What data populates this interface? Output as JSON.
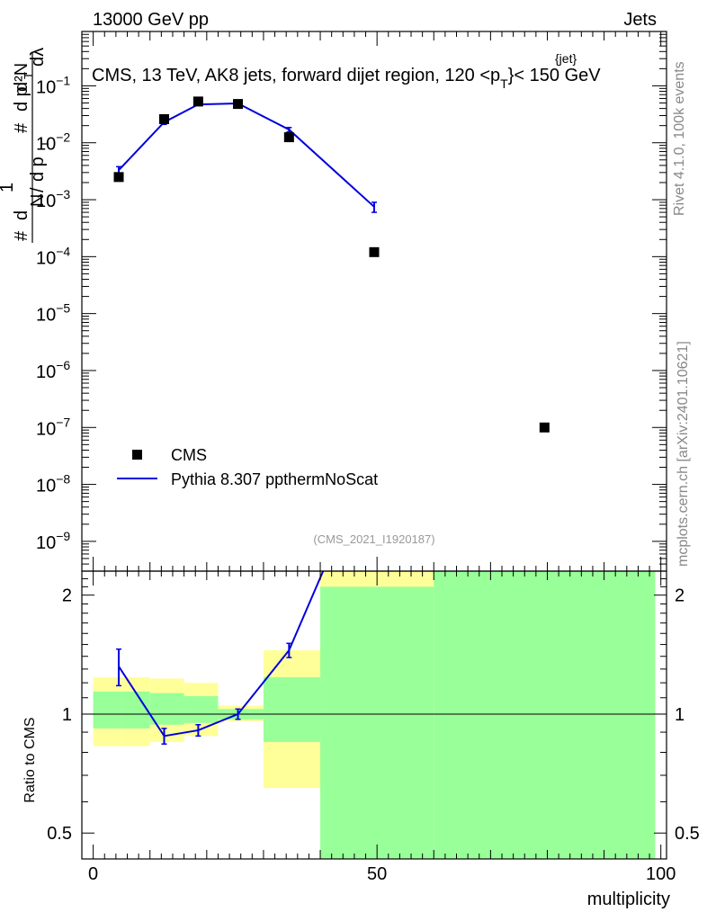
{
  "header": {
    "left": "13000 GeV pp",
    "right": "Jets",
    "title": "CMS, 13 TeV, AK8 jets, forward dijet region, 120 <p",
    "title_sup": "{jet}",
    "title_sub": "T",
    "title_end": "}< 150 GeV"
  },
  "side": {
    "rivet": "Rivet 4.1.0,  100k events",
    "mcplots": "mcplots.cern.ch [arXiv:2401.10621]"
  },
  "watermark": "(CMS_2021_I1920187)",
  "legend": {
    "data_label": "CMS",
    "mc_label": "Pythia 8.307 ppthermNoScat"
  },
  "colors": {
    "mc": "#0000dd",
    "band_green": "#99ff99",
    "band_yellow": "#ffff99",
    "data": "#000000"
  },
  "chart_data": [
    {
      "type": "scatter",
      "yscale": "log",
      "ylabel": "1/dN/dp_T # d²N/dp_T dλ",
      "ylabel_parts": [
        "#",
        "d",
        "1",
        "N",
        "/",
        "d p",
        "T",
        "#",
        "d p",
        "T",
        "d²N",
        "dλ"
      ],
      "xlim": [
        -2,
        101
      ],
      "ylim": [
        3e-10,
        0.9
      ],
      "ytick_values": [
        1e-09,
        1e-08,
        1e-07,
        1e-06,
        1e-05,
        0.0001,
        0.001,
        0.01,
        0.1
      ],
      "ytick_labels": [
        {
          "base": "10",
          "exp": "−9"
        },
        {
          "base": "10",
          "exp": "−8"
        },
        {
          "base": "10",
          "exp": "−7"
        },
        {
          "base": "10",
          "exp": "−6"
        },
        {
          "base": "10",
          "exp": "−5"
        },
        {
          "base": "10",
          "exp": "−4"
        },
        {
          "base": "10",
          "exp": "−3"
        },
        {
          "base": "10",
          "exp": "−2"
        },
        {
          "base": "10",
          "exp": "−1"
        }
      ],
      "series": [
        {
          "name": "CMS",
          "x": [
            4.5,
            12.5,
            18.5,
            25.5,
            34.5,
            49.5,
            79.5
          ],
          "y": [
            0.0025,
            0.026,
            0.053,
            0.048,
            0.0125,
            0.00012,
            1e-07
          ]
        },
        {
          "name": "Pythia 8.307 ppthermNoScat",
          "x": [
            4.5,
            12.5,
            18.5,
            25.5,
            34.5,
            49.5
          ],
          "y": [
            0.0033,
            0.023,
            0.047,
            0.049,
            0.017,
            0.00075
          ],
          "yerr": [
            0.0005,
            0.002,
            0.002,
            0.002,
            0.0015,
            0.00015
          ]
        }
      ]
    },
    {
      "type": "line",
      "yscale": "log",
      "ylabel": "Ratio to CMS",
      "xlabel": "multiplicity",
      "xlim": [
        -2,
        101
      ],
      "ylim": [
        0.43,
        2.3
      ],
      "xtick_values": [
        0,
        50,
        100
      ],
      "xtick_labels": [
        "0",
        "50",
        "100"
      ],
      "ytick_values": [
        0.5,
        1,
        2
      ],
      "ytick_labels": [
        "0.5",
        "1",
        "2"
      ],
      "bands": [
        {
          "x0": 0,
          "x1": 5,
          "yellow": [
            0.83,
            1.24
          ],
          "green": [
            0.92,
            1.14
          ]
        },
        {
          "x0": 5,
          "x1": 10,
          "yellow": [
            0.83,
            1.24
          ],
          "green": [
            0.92,
            1.14
          ]
        },
        {
          "x0": 10,
          "x1": 16,
          "yellow": [
            0.85,
            1.23
          ],
          "green": [
            0.94,
            1.13
          ]
        },
        {
          "x0": 16,
          "x1": 22,
          "yellow": [
            0.88,
            1.2
          ],
          "green": [
            0.95,
            1.11
          ]
        },
        {
          "x0": 22,
          "x1": 30,
          "yellow": [
            0.96,
            1.05
          ],
          "green": [
            0.97,
            1.03
          ]
        },
        {
          "x0": 30,
          "x1": 40,
          "yellow": [
            0.65,
            1.45
          ],
          "green": [
            0.85,
            1.24
          ]
        },
        {
          "x0": 40,
          "x1": 60,
          "yellow": [
            0.43,
            2.3
          ],
          "green": [
            0.43,
            2.1
          ]
        },
        {
          "x0": 60,
          "x1": 99,
          "yellow": [
            0.43,
            2.3
          ],
          "green": [
            0.43,
            2.3
          ]
        }
      ],
      "series": [
        {
          "name": "Pythia 8.307 ppthermNoScat",
          "x": [
            4.5,
            12.5,
            18.5,
            25.5,
            34.5,
            40.5
          ],
          "y": [
            1.32,
            0.88,
            0.91,
            1.0,
            1.45,
            2.3
          ],
          "yerr": [
            0.14,
            0.04,
            0.03,
            0.03,
            0.06,
            0
          ]
        }
      ],
      "reference_line": 1
    }
  ]
}
